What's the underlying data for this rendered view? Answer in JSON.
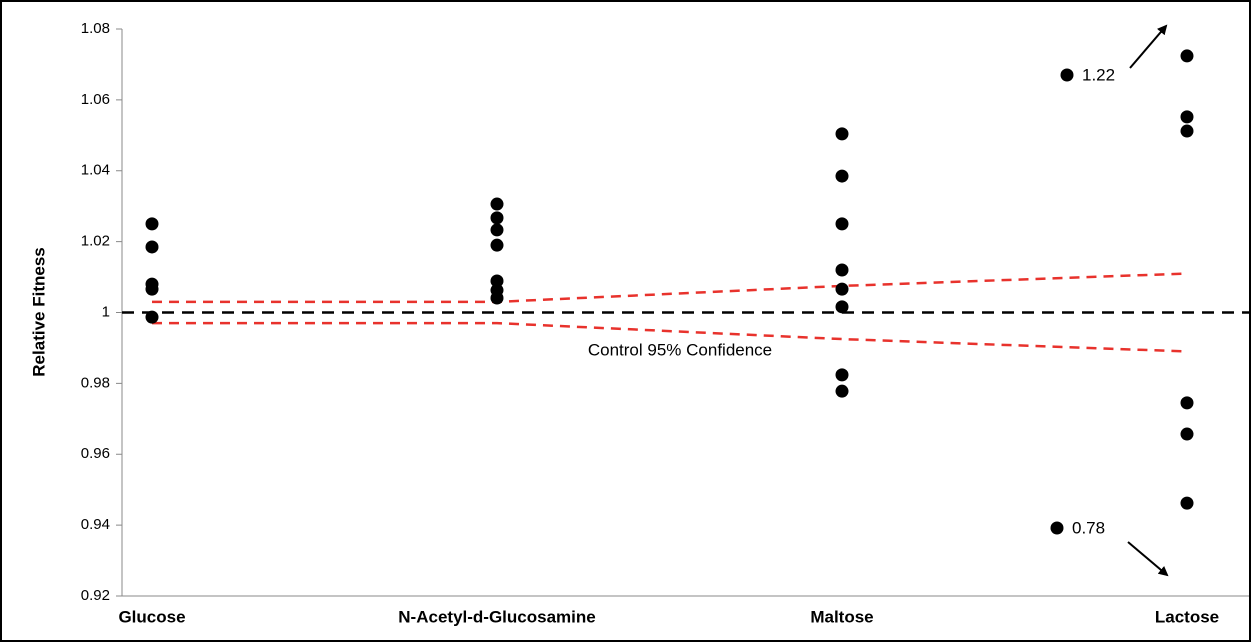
{
  "chart_data": {
    "type": "strip",
    "ylabel": "Relative Fitness",
    "categories": [
      "Glucose",
      "N-Acetyl-d-Glucosamine",
      "Maltose",
      "Lactose"
    ],
    "values": [
      [
        1.025,
        1.0185,
        1.008,
        1.0066,
        0.9987
      ],
      [
        1.0306,
        1.0267,
        1.0233,
        1.019,
        1.0089,
        1.0063,
        1.0041
      ],
      [
        1.0504,
        1.0385,
        1.025,
        1.012,
        1.0066,
        1.0016,
        0.9824,
        0.9778
      ],
      [
        1.0724,
        1.0552,
        1.0512,
        0.9745,
        0.9657,
        0.9462
      ]
    ],
    "color": "#000000",
    "off_scale_values": [
      1.22,
      0.78
    ],
    "reference_value": 1,
    "reference_color": "#000000",
    "ci_label": "Control 95% Confidence",
    "ci_upper": [
      1.003,
      1.003,
      1.0075,
      1.011
    ],
    "ci_lower": [
      0.997,
      0.997,
      0.9925,
      0.989
    ],
    "ci_color": "#e8322c",
    "ylim": [
      0.92,
      1.08
    ],
    "yticks": [
      0.92,
      0.94,
      0.96,
      0.98,
      1,
      1.02,
      1.04,
      1.06,
      1.08
    ]
  }
}
